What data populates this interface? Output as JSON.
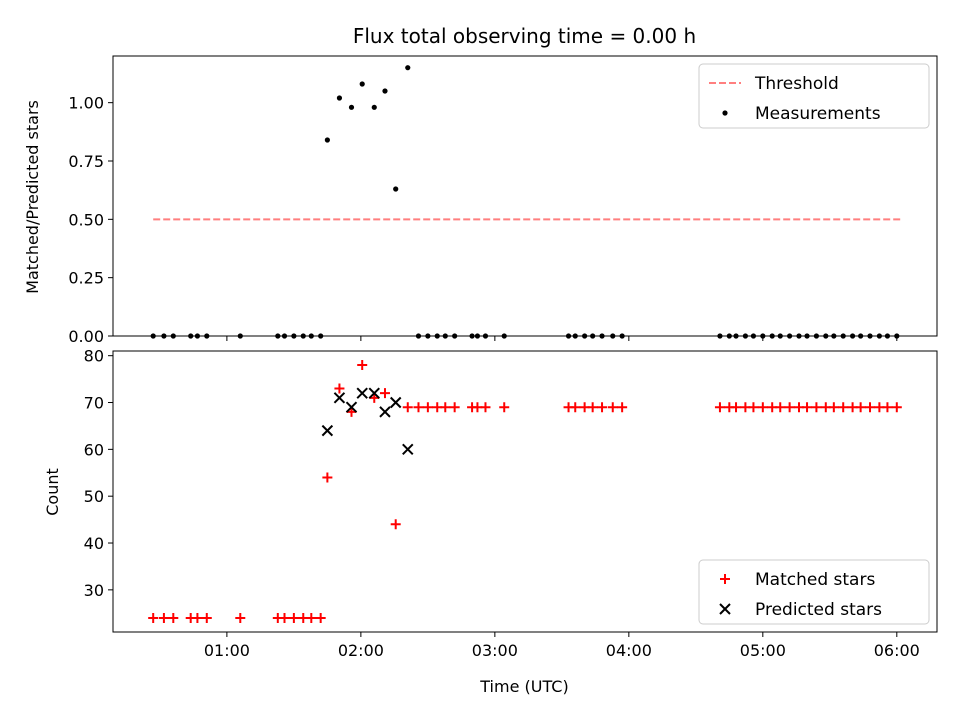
{
  "chart_data": [
    {
      "type": "scatter",
      "title": "Flux total observing time = 0.00 h",
      "xlabel": "",
      "ylabel": "Matched/Predicted stars",
      "ylim": [
        0,
        1.2
      ],
      "yticks": [
        0.0,
        0.25,
        0.5,
        0.75,
        1.0
      ],
      "ytick_labels": [
        "0.00",
        "0.25",
        "0.50",
        "0.75",
        "1.00"
      ],
      "xlim_hours": [
        0.15,
        6.3
      ],
      "xticks_hours": [
        1,
        2,
        3,
        4,
        5,
        6
      ],
      "legend_position": "top-right",
      "grid": false,
      "series": [
        {
          "name": "Threshold",
          "kind": "line",
          "style": "dashed",
          "color": "#ff7f7f",
          "x_hours": [
            0.45,
            6.03
          ],
          "values": [
            0.5,
            0.5
          ]
        },
        {
          "name": "Measurements",
          "kind": "points",
          "color": "#000000",
          "x_hours": [
            0.45,
            0.53,
            0.6,
            0.73,
            0.78,
            0.85,
            1.1,
            1.38,
            1.43,
            1.5,
            1.57,
            1.63,
            1.7,
            1.75,
            1.84,
            1.93,
            2.01,
            2.1,
            2.18,
            2.26,
            2.35,
            2.43,
            2.5,
            2.57,
            2.63,
            2.7,
            2.83,
            2.87,
            2.93,
            3.07,
            3.55,
            3.6,
            3.67,
            3.73,
            3.8,
            3.88,
            3.95,
            4.68,
            4.75,
            4.8,
            4.87,
            4.93,
            5.0,
            5.07,
            5.13,
            5.2,
            5.27,
            5.33,
            5.4,
            5.47,
            5.53,
            5.6,
            5.67,
            5.73,
            5.8,
            5.87,
            5.93,
            6.0
          ],
          "values": [
            0,
            0,
            0,
            0,
            0,
            0,
            0,
            0,
            0,
            0,
            0,
            0,
            0,
            0.84,
            1.02,
            0.98,
            1.08,
            0.98,
            1.05,
            0.63,
            1.15,
            0,
            0,
            0,
            0,
            0,
            0,
            0,
            0,
            0,
            0,
            0,
            0,
            0,
            0,
            0,
            0,
            0,
            0,
            0,
            0,
            0,
            0,
            0,
            0,
            0,
            0,
            0,
            0,
            0,
            0,
            0,
            0,
            0,
            0,
            0,
            0,
            0
          ]
        }
      ]
    },
    {
      "type": "scatter",
      "title": "",
      "xlabel": "Time (UTC)",
      "ylabel": "Count",
      "ylim": [
        21,
        81
      ],
      "yticks": [
        30,
        40,
        50,
        60,
        70,
        80
      ],
      "ytick_labels": [
        "30",
        "40",
        "50",
        "60",
        "70",
        "80"
      ],
      "xlim_hours": [
        0.15,
        6.3
      ],
      "xticks_hours": [
        1,
        2,
        3,
        4,
        5,
        6
      ],
      "xtick_labels": [
        "01:00",
        "02:00",
        "03:00",
        "04:00",
        "05:00",
        "06:00"
      ],
      "legend_position": "bottom-right",
      "grid": false,
      "series": [
        {
          "name": "Matched stars",
          "kind": "plus",
          "color": "#ff0000",
          "x_hours": [
            0.45,
            0.53,
            0.6,
            0.73,
            0.78,
            0.85,
            1.1,
            1.38,
            1.43,
            1.5,
            1.57,
            1.63,
            1.7,
            1.75,
            1.84,
            1.93,
            2.01,
            2.1,
            2.18,
            2.26,
            2.35,
            2.43,
            2.5,
            2.57,
            2.63,
            2.7,
            2.83,
            2.87,
            2.93,
            3.07,
            3.55,
            3.6,
            3.67,
            3.73,
            3.8,
            3.88,
            3.95,
            4.68,
            4.75,
            4.8,
            4.87,
            4.93,
            5.0,
            5.07,
            5.13,
            5.2,
            5.27,
            5.33,
            5.4,
            5.47,
            5.53,
            5.6,
            5.67,
            5.73,
            5.8,
            5.87,
            5.93,
            6.0
          ],
          "values": [
            24,
            24,
            24,
            24,
            24,
            24,
            24,
            24,
            24,
            24,
            24,
            24,
            24,
            54,
            73,
            68,
            78,
            71,
            72,
            44,
            69,
            69,
            69,
            69,
            69,
            69,
            69,
            69,
            69,
            69,
            69,
            69,
            69,
            69,
            69,
            69,
            69,
            69,
            69,
            69,
            69,
            69,
            69,
            69,
            69,
            69,
            69,
            69,
            69,
            69,
            69,
            69,
            69,
            69,
            69,
            69,
            69,
            69
          ]
        },
        {
          "name": "Predicted stars",
          "kind": "x",
          "color": "#000000",
          "x_hours": [
            1.75,
            1.84,
            1.93,
            2.01,
            2.1,
            2.18,
            2.26,
            2.35
          ],
          "values": [
            64,
            71,
            69,
            72,
            72,
            68,
            70,
            60
          ]
        }
      ]
    }
  ]
}
